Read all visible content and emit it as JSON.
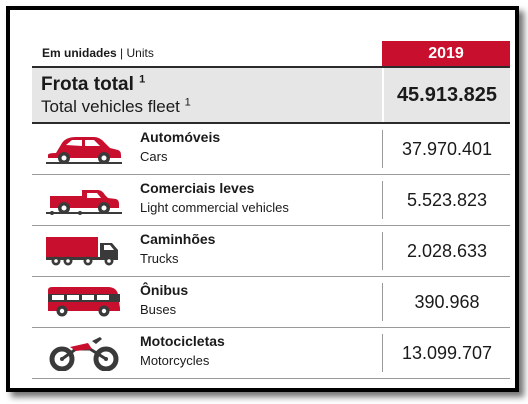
{
  "header": {
    "unit_label_pt": "Em unidades",
    "separator": " | ",
    "unit_label_en": "Units",
    "year": "2019"
  },
  "total": {
    "label_pt": "Frota total",
    "label_en": "Total vehicles fleet",
    "footnote": "1",
    "value": "45.913.825"
  },
  "rows": [
    {
      "label_pt": "Automóveis",
      "label_en": "Cars",
      "value": "37.970.401",
      "icon": "car-icon"
    },
    {
      "label_pt": "Comerciais leves",
      "label_en": "Light commercial vehicles",
      "value": "5.523.823",
      "icon": "pickup-truck-icon"
    },
    {
      "label_pt": "Caminhões",
      "label_en": "Trucks",
      "value": "2.028.633",
      "icon": "truck-icon"
    },
    {
      "label_pt": "Ônibus",
      "label_en": "Buses",
      "value": "390.968",
      "icon": "bus-icon"
    },
    {
      "label_pt": "Motocicletas",
      "label_en": "Motorcycles",
      "value": "13.099.707",
      "icon": "motorcycle-icon"
    }
  ],
  "colors": {
    "accent": "#c8102e",
    "dark": "#3a3a3a",
    "total_bg": "#e6e6e6"
  }
}
